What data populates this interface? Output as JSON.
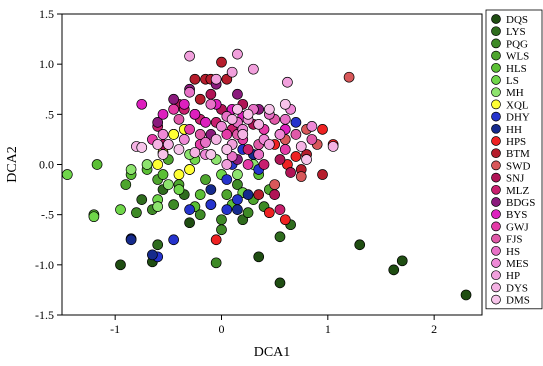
{
  "chart_data": {
    "type": "scatter",
    "xlabel": "DCA1",
    "ylabel": "DCA2",
    "xlim": [
      -1.5,
      2.45
    ],
    "ylim": [
      -1.5,
      1.5
    ],
    "xticks": [
      -1,
      0,
      1,
      2
    ],
    "yticks": [
      -1.5,
      -1.0,
      -0.5,
      0.0,
      0.5,
      1.0,
      1.5
    ],
    "ytick_labels": [
      "-1.5",
      "-1.0",
      "-.5",
      "0.0",
      ".5",
      "1.0",
      "1.5"
    ],
    "grid": false,
    "legend_position": "right",
    "series": [
      {
        "name": "DQS",
        "color": "#1f4d12",
        "points": [
          [
            -0.95,
            -1.0
          ],
          [
            -0.65,
            -0.97
          ],
          [
            -0.3,
            -0.58
          ],
          [
            1.3,
            -0.8
          ],
          [
            1.62,
            -1.05
          ],
          [
            1.7,
            -0.96
          ],
          [
            2.3,
            -1.3
          ],
          [
            0.55,
            -1.18
          ],
          [
            0.35,
            -0.92
          ]
        ]
      },
      {
        "name": "LYS",
        "color": "#2f6c1e",
        "points": [
          [
            -0.6,
            -0.8
          ],
          [
            -0.75,
            -0.35
          ],
          [
            -0.55,
            -0.25
          ],
          [
            -0.1,
            -0.4
          ],
          [
            0.55,
            -0.72
          ],
          [
            0.2,
            -0.55
          ],
          [
            0.65,
            -0.6
          ],
          [
            -0.35,
            -0.3
          ]
        ]
      },
      {
        "name": "PQG",
        "color": "#3e8a26",
        "points": [
          [
            -0.8,
            -0.48
          ],
          [
            -0.65,
            -0.45
          ],
          [
            -0.45,
            -0.4
          ],
          [
            -0.2,
            -0.5
          ],
          [
            0.0,
            -0.55
          ],
          [
            0.25,
            -0.48
          ],
          [
            0.4,
            -0.42
          ],
          [
            -0.05,
            -0.98
          ],
          [
            0.0,
            -0.65
          ],
          [
            0.15,
            -0.2
          ]
        ]
      },
      {
        "name": "WLS",
        "color": "#4ea52e",
        "points": [
          [
            -1.2,
            -0.5
          ],
          [
            -0.9,
            -0.2
          ],
          [
            -0.6,
            -0.15
          ],
          [
            -0.4,
            -0.2
          ],
          [
            -0.15,
            -0.15
          ],
          [
            0.05,
            -0.3
          ],
          [
            0.3,
            -0.35
          ],
          [
            0.45,
            -0.25
          ],
          [
            -0.5,
            0.05
          ]
        ]
      },
      {
        "name": "HLS",
        "color": "#5bbf35",
        "points": [
          [
            -1.17,
            0.0
          ],
          [
            -0.85,
            -0.1
          ],
          [
            -0.7,
            -0.05
          ],
          [
            -0.55,
            -0.1
          ],
          [
            -0.3,
            -0.05
          ],
          [
            -0.2,
            -0.3
          ],
          [
            0.1,
            -0.4
          ],
          [
            0.35,
            -0.1
          ],
          [
            -0.25,
            -0.42
          ]
        ]
      },
      {
        "name": "LS",
        "color": "#6fd64a",
        "points": [
          [
            -1.45,
            -0.1
          ],
          [
            -1.2,
            -0.52
          ],
          [
            -0.95,
            -0.45
          ],
          [
            -0.6,
            -0.35
          ],
          [
            -0.4,
            -0.25
          ],
          [
            -0.25,
            0.05
          ],
          [
            0.0,
            -0.1
          ],
          [
            0.2,
            -0.28
          ],
          [
            -0.45,
            0.3
          ]
        ]
      },
      {
        "name": "MH",
        "color": "#8de36e",
        "points": [
          [
            -0.85,
            -0.05
          ],
          [
            -0.7,
            0.0
          ],
          [
            -0.5,
            -0.2
          ],
          [
            -0.3,
            0.1
          ],
          [
            -0.05,
            0.05
          ],
          [
            0.15,
            -0.1
          ],
          [
            0.3,
            0.0
          ],
          [
            -0.6,
            -0.42
          ]
        ]
      },
      {
        "name": "XQL",
        "color": "#ffff33",
        "points": [
          [
            -0.55,
            0.12
          ],
          [
            -0.5,
            0.2
          ],
          [
            -0.45,
            0.3
          ],
          [
            -0.35,
            0.35
          ],
          [
            -0.6,
            0.0
          ],
          [
            -0.4,
            -0.1
          ],
          [
            -0.3,
            -0.05
          ]
        ]
      },
      {
        "name": "DHY",
        "color": "#2533cc",
        "points": [
          [
            -0.85,
            -0.74
          ],
          [
            -0.45,
            -0.75
          ],
          [
            -0.6,
            -0.92
          ],
          [
            0.05,
            -0.15
          ],
          [
            0.1,
            0.0
          ],
          [
            0.2,
            0.15
          ],
          [
            0.35,
            -0.05
          ],
          [
            0.7,
            0.42
          ],
          [
            -0.3,
            -0.45
          ],
          [
            -0.1,
            -0.4
          ],
          [
            0.05,
            -0.45
          ],
          [
            0.15,
            -0.35
          ]
        ]
      },
      {
        "name": "HH",
        "color": "#152a8c",
        "points": [
          [
            -0.85,
            -0.75
          ],
          [
            -0.65,
            -0.9
          ],
          [
            -0.1,
            -0.25
          ],
          [
            0.1,
            0.2
          ],
          [
            0.25,
            -0.3
          ],
          [
            0.15,
            -0.45
          ],
          [
            0.3,
            0.1
          ]
        ]
      },
      {
        "name": "HPS",
        "color": "#ee2222",
        "points": [
          [
            -0.05,
            -0.75
          ],
          [
            0.45,
            -0.48
          ],
          [
            0.5,
            0.2
          ],
          [
            0.7,
            0.08
          ],
          [
            0.95,
            0.35
          ],
          [
            1.05,
            0.2
          ],
          [
            0.55,
            0.3
          ],
          [
            0.62,
            0.0
          ],
          [
            0.6,
            -0.55
          ]
        ]
      },
      {
        "name": "BTM",
        "color": "#b51d2c",
        "points": [
          [
            -0.25,
            0.85
          ],
          [
            -0.15,
            0.85
          ],
          [
            -0.1,
            0.85
          ],
          [
            0.0,
            1.02
          ],
          [
            0.05,
            0.85
          ],
          [
            -0.2,
            0.65
          ],
          [
            0.35,
            -0.3
          ],
          [
            0.75,
            -0.05
          ],
          [
            0.8,
            0.1
          ],
          [
            0.95,
            -0.1
          ]
        ]
      },
      {
        "name": "SWD",
        "color": "#d8585a",
        "points": [
          [
            1.2,
            0.87
          ],
          [
            0.9,
            0.2
          ],
          [
            0.6,
            0.25
          ],
          [
            0.8,
            0.35
          ],
          [
            0.5,
            -0.2
          ],
          [
            0.75,
            -0.12
          ]
        ]
      },
      {
        "name": "SNJ",
        "color": "#b01556",
        "points": [
          [
            -0.4,
            0.6
          ],
          [
            -0.25,
            0.5
          ],
          [
            -0.1,
            0.7
          ],
          [
            0.0,
            0.55
          ],
          [
            0.2,
            0.6
          ],
          [
            0.3,
            0.4
          ],
          [
            0.5,
            -0.3
          ],
          [
            0.65,
            -0.08
          ],
          [
            0.55,
            0.05
          ],
          [
            -0.55,
            0.2
          ]
        ]
      },
      {
        "name": "MLZ",
        "color": "#c81f6e",
        "points": [
          [
            -0.6,
            0.38
          ],
          [
            -0.35,
            0.55
          ],
          [
            -0.2,
            0.45
          ],
          [
            -0.05,
            0.42
          ],
          [
            0.1,
            0.35
          ],
          [
            0.25,
            0.15
          ],
          [
            0.4,
            0.0
          ],
          [
            0.55,
            -0.45
          ]
        ]
      },
      {
        "name": "BDGS",
        "color": "#8a1a7c",
        "points": [
          [
            -0.6,
            0.42
          ],
          [
            -0.45,
            0.65
          ],
          [
            -0.3,
            0.75
          ],
          [
            -0.05,
            0.8
          ],
          [
            0.15,
            0.7
          ],
          [
            0.35,
            0.55
          ],
          [
            -0.1,
            0.3
          ],
          [
            0.15,
            0.05
          ]
        ]
      },
      {
        "name": "BYS",
        "color": "#dd1fbe",
        "points": [
          [
            -0.75,
            0.6
          ],
          [
            -0.55,
            0.5
          ],
          [
            -0.35,
            0.6
          ],
          [
            -0.25,
            0.5
          ],
          [
            -0.05,
            0.6
          ],
          [
            0.1,
            0.55
          ],
          [
            0.2,
            0.48
          ],
          [
            -0.15,
            0.42
          ],
          [
            0.6,
            0.35
          ]
        ]
      },
      {
        "name": "GWJ",
        "color": "#e43ba7",
        "points": [
          [
            -0.65,
            0.25
          ],
          [
            -0.45,
            0.55
          ],
          [
            -0.3,
            0.35
          ],
          [
            -0.2,
            0.2
          ],
          [
            0.05,
            0.3
          ],
          [
            0.2,
            0.25
          ],
          [
            0.4,
            0.35
          ],
          [
            0.6,
            0.15
          ],
          [
            0.25,
            0.0
          ]
        ]
      },
      {
        "name": "FJS",
        "color": "#e05aa8",
        "points": [
          [
            -0.4,
            0.45
          ],
          [
            -0.2,
            0.3
          ],
          [
            0.05,
            0.15
          ],
          [
            0.15,
            0.3
          ],
          [
            0.35,
            0.2
          ],
          [
            0.5,
            0.45
          ],
          [
            0.7,
            0.3
          ],
          [
            0.85,
            0.25
          ]
        ]
      },
      {
        "name": "HS",
        "color": "#e872c7",
        "points": [
          [
            -0.3,
            0.72
          ],
          [
            -0.1,
            0.6
          ],
          [
            0.05,
            0.48
          ],
          [
            0.15,
            0.42
          ],
          [
            0.3,
            0.55
          ],
          [
            0.45,
            0.5
          ],
          [
            0.6,
            0.45
          ],
          [
            -0.15,
            0.22
          ],
          [
            0.1,
            0.08
          ],
          [
            0.35,
            0.1
          ]
        ]
      },
      {
        "name": "MES",
        "color": "#ee89d6",
        "points": [
          [
            -0.55,
            0.3
          ],
          [
            -0.35,
            0.25
          ],
          [
            -0.15,
            0.1
          ],
          [
            0.0,
            0.38
          ],
          [
            0.2,
            0.35
          ],
          [
            0.4,
            0.25
          ],
          [
            0.55,
            0.3
          ],
          [
            0.65,
            0.55
          ],
          [
            0.85,
            0.38
          ]
        ]
      },
      {
        "name": "HP",
        "color": "#f1a0dc",
        "points": [
          [
            -0.3,
            1.08
          ],
          [
            0.15,
            1.1
          ],
          [
            0.3,
            0.95
          ],
          [
            0.1,
            0.92
          ],
          [
            0.62,
            0.82
          ],
          [
            -0.05,
            0.85
          ],
          [
            0.1,
            0.2
          ],
          [
            0.25,
            0.45
          ],
          [
            0.45,
            0.2
          ],
          [
            0.05,
            0.0
          ]
        ]
      },
      {
        "name": "DYS",
        "color": "#f5b3e4",
        "points": [
          [
            -0.8,
            0.18
          ],
          [
            -0.6,
            0.2
          ],
          [
            -0.5,
            0.2
          ],
          [
            -0.25,
            0.12
          ],
          [
            -0.05,
            0.25
          ],
          [
            0.1,
            0.45
          ],
          [
            0.2,
            0.3
          ],
          [
            0.35,
            0.4
          ],
          [
            0.75,
            0.18
          ],
          [
            1.05,
            0.18
          ]
        ]
      },
      {
        "name": "DMS",
        "color": "#f7c4ea",
        "points": [
          [
            -0.75,
            0.17
          ],
          [
            -0.55,
            0.1
          ],
          [
            -0.4,
            0.15
          ],
          [
            -0.1,
            0.1
          ],
          [
            0.05,
            0.15
          ],
          [
            0.15,
            0.55
          ],
          [
            0.25,
            0.5
          ],
          [
            0.45,
            0.55
          ],
          [
            0.6,
            0.6
          ],
          [
            0.8,
            0.05
          ]
        ]
      }
    ]
  }
}
